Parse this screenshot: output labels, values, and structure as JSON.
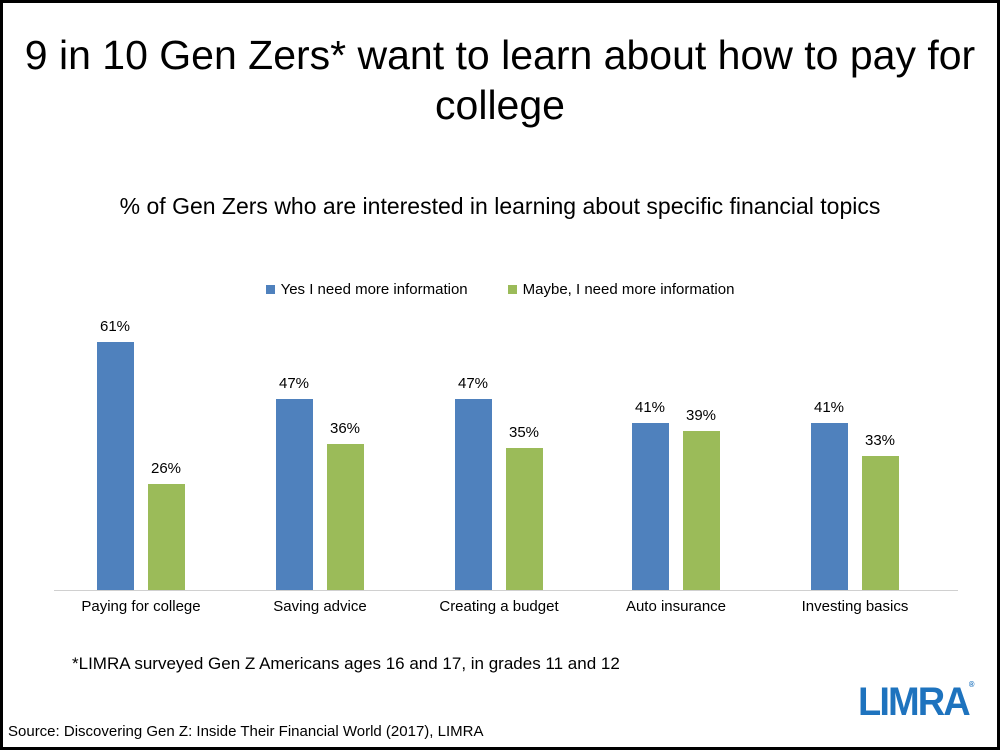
{
  "title": "9 in 10 Gen Zers* want to learn about how to pay for college",
  "footnote": "*LIMRA surveyed Gen Z Americans ages 16 and 17, in grades 11 and 12",
  "source": "Source: Discovering Gen Z: Inside Their Financial World (2017), LIMRA",
  "logo": {
    "text": "LIMRA",
    "reg": "®",
    "color": "#1e73be"
  },
  "colors": {
    "yes": "#4f81bd",
    "maybe": "#9bbb59"
  },
  "chart_data": {
    "type": "bar",
    "title": "% of Gen Zers who are interested in learning about specific financial topics",
    "xlabel": "",
    "ylabel": "",
    "ylim": [
      0,
      70
    ],
    "grid": false,
    "legend_position": "top",
    "categories": [
      "Paying for college",
      "Saving advice",
      "Creating a budget",
      "Auto insurance",
      "Investing basics"
    ],
    "series": [
      {
        "name": "Yes I need more information",
        "color": "#4f81bd",
        "values": [
          61,
          47,
          47,
          41,
          41
        ],
        "labels": [
          "61%",
          "47%",
          "47%",
          "41%",
          "41%"
        ]
      },
      {
        "name": "Maybe, I need more information",
        "color": "#9bbb59",
        "values": [
          26,
          36,
          35,
          39,
          33
        ],
        "labels": [
          "26%",
          "36%",
          "35%",
          "39%",
          "33%"
        ]
      }
    ]
  }
}
